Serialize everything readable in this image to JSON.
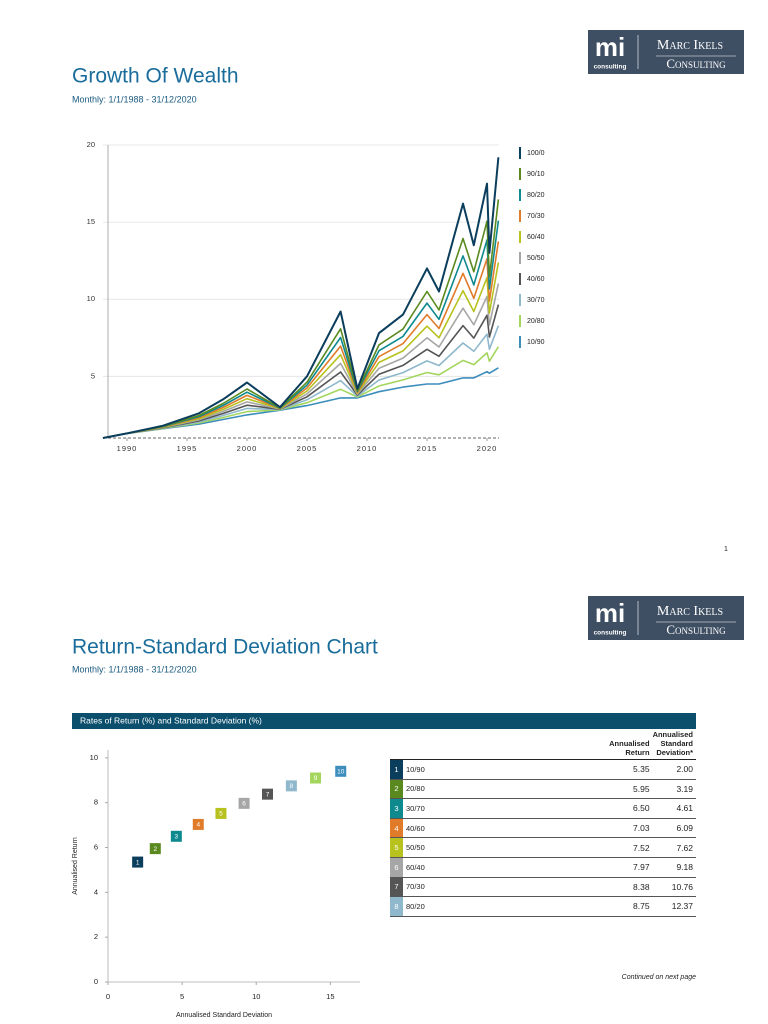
{
  "logo": {
    "mark": "mi",
    "sub": "consulting",
    "name1": "Marc Ikels",
    "name2": "Consulting"
  },
  "page1": {
    "title": "Growth Of Wealth",
    "subtitle": "Monthly: 1/1/1988 - 31/12/2020",
    "page_number": "1"
  },
  "page2": {
    "title": "Return-Standard Deviation Chart",
    "subtitle": "Monthly: 1/1/1988 - 31/12/2020",
    "banner": "Rates of Return (%) and Standard Deviation (%)",
    "footnote": "Continued on next page"
  },
  "table": {
    "header": [
      "Annualised Return",
      "Annualised Standard Deviation*"
    ],
    "rows": [
      [
        "1",
        "10/90",
        "5.35",
        "2.00"
      ],
      [
        "2",
        "20/80",
        "5.95",
        "3.19"
      ],
      [
        "3",
        "30/70",
        "6.50",
        "4.61"
      ],
      [
        "4",
        "40/60",
        "7.03",
        "6.09"
      ],
      [
        "5",
        "50/50",
        "7.52",
        "7.62"
      ],
      [
        "6",
        "60/40",
        "7.97",
        "9.18"
      ],
      [
        "7",
        "70/30",
        "8.38",
        "10.76"
      ],
      [
        "8",
        "80/20",
        "8.75",
        "12.37"
      ]
    ]
  },
  "chart_data": [
    {
      "type": "line",
      "x": [
        1988,
        1990,
        1993,
        1996,
        1998,
        2000,
        2002.75,
        2005,
        2007.8,
        2009.2,
        2011,
        2013,
        2015,
        2016,
        2018,
        2018.9,
        2020,
        2020.2,
        2020.95
      ],
      "xlim": [
        1988,
        2021
      ],
      "xticks": [
        1990,
        1995,
        2000,
        2005,
        2010,
        2015,
        2020
      ],
      "ylim": [
        1,
        20
      ],
      "yticks": [
        5,
        10,
        15,
        20
      ],
      "grid": true,
      "legend": "right",
      "series": [
        {
          "name": "100/0",
          "color": "#0b3d5c",
          "values": [
            1,
            1.3,
            1.8,
            2.6,
            3.5,
            4.6,
            3.0,
            5.0,
            9.2,
            4.2,
            7.8,
            9.0,
            12.0,
            10.5,
            16.2,
            13.5,
            17.5,
            13.0,
            19.2
          ]
        },
        {
          "name": "90/10",
          "color": "#5a8a1f",
          "values": [
            1,
            1.3,
            1.76,
            2.46,
            3.24,
            4.18,
            2.96,
            4.62,
            8.08,
            4.08,
            7.04,
            8.06,
            10.5,
            9.3,
            13.94,
            11.78,
            15.06,
            11.44,
            16.47
          ]
        },
        {
          "name": "80/20",
          "color": "#0e8a8f",
          "values": [
            1,
            1.3,
            1.74,
            2.39,
            3.11,
            3.97,
            2.94,
            4.43,
            7.52,
            4.02,
            6.66,
            7.59,
            9.75,
            8.7,
            12.81,
            10.92,
            13.84,
            10.66,
            15.1
          ]
        },
        {
          "name": "70/30",
          "color": "#e07b2a",
          "values": [
            1,
            1.3,
            1.72,
            2.32,
            2.98,
            3.76,
            2.92,
            4.24,
            6.96,
            3.96,
            6.28,
            7.12,
            9.0,
            8.1,
            11.68,
            10.06,
            12.62,
            9.88,
            13.74
          ]
        },
        {
          "name": "60/40",
          "color": "#b8c21f",
          "values": [
            1,
            1.3,
            1.7,
            2.25,
            2.85,
            3.55,
            2.9,
            4.05,
            6.4,
            3.9,
            5.9,
            6.65,
            8.25,
            7.5,
            10.55,
            9.2,
            11.4,
            9.1,
            12.38
          ]
        },
        {
          "name": "50/50",
          "color": "#a6a6a6",
          "values": [
            1,
            1.3,
            1.68,
            2.18,
            2.72,
            3.34,
            2.88,
            3.86,
            5.84,
            3.84,
            5.52,
            6.18,
            7.5,
            6.9,
            9.42,
            8.34,
            10.18,
            8.32,
            11.01
          ]
        },
        {
          "name": "40/60",
          "color": "#555555",
          "values": [
            1,
            1.3,
            1.66,
            2.11,
            2.59,
            3.13,
            2.86,
            3.67,
            5.28,
            3.78,
            5.14,
            5.71,
            6.75,
            6.3,
            8.29,
            7.48,
            8.96,
            7.54,
            9.65
          ]
        },
        {
          "name": "30/70",
          "color": "#8fb8cc",
          "values": [
            1,
            1.3,
            1.64,
            2.04,
            2.46,
            2.92,
            2.84,
            3.48,
            4.72,
            3.72,
            4.76,
            5.24,
            6.0,
            5.7,
            7.16,
            6.62,
            7.74,
            6.76,
            8.28
          ]
        },
        {
          "name": "20/80",
          "color": "#a4d65e",
          "values": [
            1,
            1.3,
            1.62,
            1.97,
            2.33,
            2.71,
            2.82,
            3.29,
            4.16,
            3.66,
            4.38,
            4.77,
            5.25,
            5.1,
            6.03,
            5.76,
            6.52,
            5.98,
            6.92
          ]
        },
        {
          "name": "10/90",
          "color": "#3c8dbc",
          "values": [
            1,
            1.3,
            1.6,
            1.9,
            2.2,
            2.5,
            2.8,
            3.1,
            3.6,
            3.6,
            4.0,
            4.3,
            4.5,
            4.5,
            4.9,
            4.9,
            5.3,
            5.2,
            5.55
          ]
        }
      ]
    },
    {
      "type": "scatter",
      "x_label": "Annualised Standard Deviation",
      "y_label": "Annualised Return",
      "x": [
        2.0,
        3.19,
        4.61,
        6.09,
        7.62,
        9.18,
        10.76,
        12.37,
        14.0,
        15.7
      ],
      "values": [
        5.35,
        5.95,
        6.5,
        7.03,
        7.52,
        7.97,
        8.38,
        8.75,
        9.1,
        9.4
      ],
      "point_labels": [
        "1",
        "2",
        "3",
        "4",
        "5",
        "6",
        "7",
        "8",
        "9",
        "10"
      ],
      "colors": [
        "#0b3d5c",
        "#5a8a1f",
        "#0e8a8f",
        "#e07b2a",
        "#b8c21f",
        "#a6a6a6",
        "#555555",
        "#8fb8cc",
        "#a4d65e",
        "#3c8dbc"
      ],
      "xlim": [
        0,
        17
      ],
      "xticks": [
        0,
        5,
        10,
        15
      ],
      "ylim": [
        0,
        10.35
      ],
      "yticks": [
        0,
        2,
        4,
        6,
        8,
        10
      ]
    }
  ]
}
